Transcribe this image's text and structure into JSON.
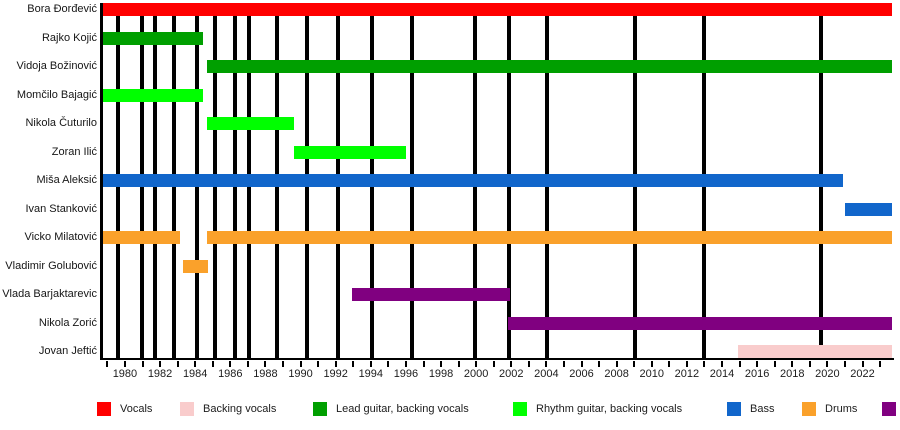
{
  "chart_data": {
    "type": "timeline",
    "title": "",
    "description": "Band membership timeline (Gantt-style) with vertical event lines marking album releases",
    "x_axis": {
      "min": 1978.75,
      "max": 2023.7,
      "tick_years": [
        1979,
        1980,
        1981,
        1982,
        1983,
        1984,
        1985,
        1986,
        1987,
        1988,
        1989,
        1990,
        1991,
        1992,
        1993,
        1994,
        1995,
        1996,
        1997,
        1998,
        1999,
        2000,
        2001,
        2002,
        2003,
        2004,
        2005,
        2006,
        2007,
        2008,
        2009,
        2010,
        2011,
        2012,
        2013,
        2014,
        2015,
        2016,
        2017,
        2018,
        2019,
        2020,
        2021,
        2022,
        2023
      ],
      "grid": false
    },
    "x_tick_labels": [
      "1980",
      "1982",
      "1984",
      "1986",
      "1988",
      "1990",
      "1992",
      "1994",
      "1996",
      "1998",
      "2000",
      "2002",
      "2004",
      "2006",
      "2008",
      "2010",
      "2012",
      "2014",
      "2016",
      "2018",
      "2020",
      "2022"
    ],
    "x_tick_label_years": [
      1980,
      1982,
      1984,
      1986,
      1988,
      1990,
      1992,
      1994,
      1996,
      1998,
      2000,
      2002,
      2004,
      2006,
      2008,
      2010,
      2012,
      2014,
      2016,
      2018,
      2020,
      2022
    ],
    "event_lines_years": [
      1979.6,
      1980.97,
      1981.71,
      1982.79,
      1984.08,
      1985.13,
      1986.27,
      1987.07,
      1988.66,
      1990.37,
      1992.14,
      1994.08,
      1996.35,
      1999.94,
      2001.88,
      2004.05,
      2009.06,
      2012.99,
      2019.66
    ],
    "members": [
      {
        "name": "Bora Đorđević",
        "segments": [
          {
            "from": 1978.75,
            "to": 2023.7,
            "role": "vocals"
          }
        ]
      },
      {
        "name": "Rajko Kojić",
        "segments": [
          {
            "from": 1978.75,
            "to": 1984.45,
            "role": "lead_guitar"
          }
        ]
      },
      {
        "name": "Vidoja Božinović",
        "segments": [
          {
            "from": 1984.7,
            "to": 2023.7,
            "role": "lead_guitar"
          }
        ]
      },
      {
        "name": "Momčilo Bajagić",
        "segments": [
          {
            "from": 1978.75,
            "to": 1984.45,
            "role": "rhythm_guitar"
          }
        ]
      },
      {
        "name": "Nikola Čuturilo",
        "segments": [
          {
            "from": 1984.7,
            "to": 1989.6,
            "role": "rhythm_guitar"
          }
        ]
      },
      {
        "name": "Zoran Ilić",
        "segments": [
          {
            "from": 1989.6,
            "to": 1996.0,
            "role": "rhythm_guitar"
          }
        ]
      },
      {
        "name": "Miša Aleksić",
        "segments": [
          {
            "from": 1978.75,
            "to": 2020.9,
            "role": "bass"
          }
        ]
      },
      {
        "name": "Ivan Stanković",
        "segments": [
          {
            "from": 2021.0,
            "to": 2023.65,
            "role": "bass"
          }
        ]
      },
      {
        "name": "Vicko Milatović",
        "segments": [
          {
            "from": 1978.75,
            "to": 1983.15,
            "role": "drums"
          },
          {
            "from": 1984.7,
            "to": 2023.7,
            "role": "drums"
          }
        ]
      },
      {
        "name": "Vladimir Golubović",
        "segments": [
          {
            "from": 1983.3,
            "to": 1984.75,
            "role": "drums"
          }
        ]
      },
      {
        "name": "Vlada Barjaktarevic",
        "segments": [
          {
            "from": 1992.95,
            "to": 2001.95,
            "role": "keyboards"
          }
        ]
      },
      {
        "name": "Nikola Zorić",
        "segments": [
          {
            "from": 2001.8,
            "to": 2023.7,
            "role": "keyboards"
          }
        ]
      },
      {
        "name": "Jovan Jeftić",
        "segments": [
          {
            "from": 2014.9,
            "to": 2023.7,
            "role": "backing_vocals"
          }
        ]
      }
    ]
  },
  "colors": {
    "vocals": "#FF0000",
    "backing_vocals": "#F9CCCC",
    "lead_guitar": "#009F00",
    "rhythm_guitar": "#00FF00",
    "bass": "#1166CB",
    "drums": "#FAA12B",
    "keyboards": "#800080",
    "event_line": "#000000",
    "axis": "#000000"
  },
  "legend": [
    {
      "role": "vocals",
      "label": "Vocals"
    },
    {
      "role": "backing_vocals",
      "label": "Backing vocals"
    },
    {
      "role": "lead_guitar",
      "label": "Lead guitar, backing vocals"
    },
    {
      "role": "rhythm_guitar",
      "label": "Rhythm guitar, backing vocals"
    },
    {
      "role": "bass",
      "label": "Bass"
    },
    {
      "role": "drums",
      "label": "Drums"
    },
    {
      "role": "keyboards",
      "label": ""
    }
  ]
}
